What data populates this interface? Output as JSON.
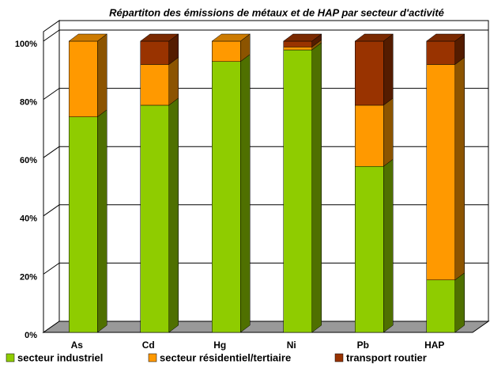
{
  "chart_data": {
    "type": "bar",
    "stacked": true,
    "three_d": true,
    "title": "Répartiton des émissions de métaux et de HAP par secteur d'activité",
    "categories": [
      "As",
      "Cd",
      "Hg",
      "Ni",
      "Pb",
      "HAP"
    ],
    "series": [
      {
        "name": "secteur industriel",
        "color": "#8fcc00",
        "values": [
          74,
          78,
          93,
          97,
          57,
          18
        ]
      },
      {
        "name": "secteur résidentiel/tertiaire",
        "color": "#ff9900",
        "values": [
          26,
          14,
          7,
          1,
          21,
          74
        ]
      },
      {
        "name": "transport routier",
        "color": "#993300",
        "values": [
          0,
          8,
          0,
          2,
          22,
          8
        ]
      }
    ],
    "ylim": [
      0,
      100
    ],
    "yticks": [
      {
        "value": 0,
        "label": "0%"
      },
      {
        "value": 20,
        "label": "20%"
      },
      {
        "value": 40,
        "label": "40%"
      },
      {
        "value": 60,
        "label": "60%"
      },
      {
        "value": 80,
        "label": "80%"
      },
      {
        "value": 100,
        "label": "100%"
      }
    ],
    "grid": true,
    "legend": "bottom"
  }
}
